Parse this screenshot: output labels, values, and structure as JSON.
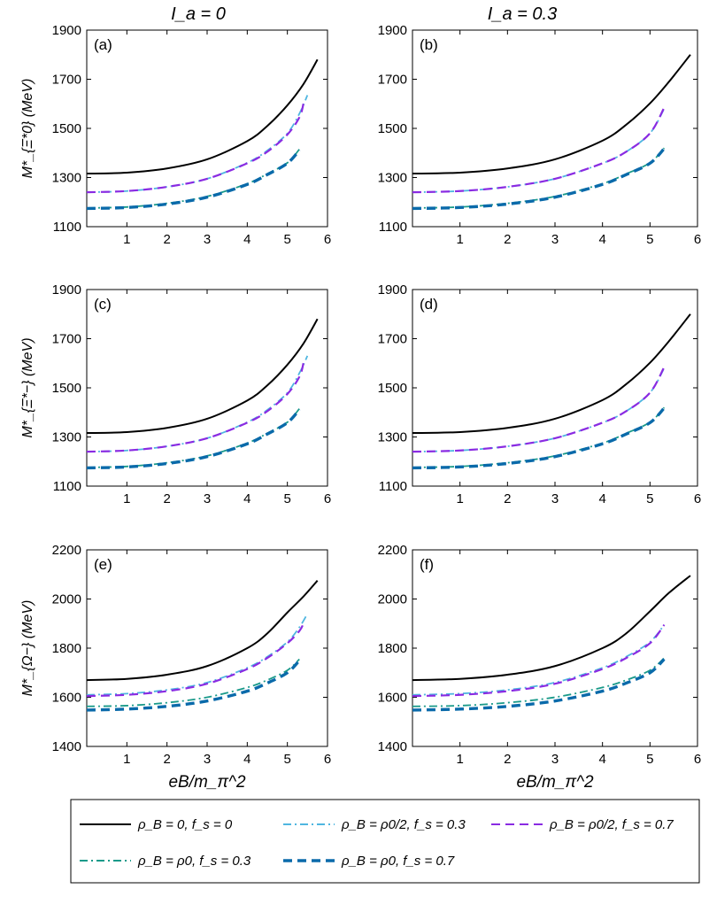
{
  "column_titles": [
    "I_a = 0",
    "I_a = 0.3"
  ],
  "row_ylabels": [
    "M*_{Ξ*0} (MeV)",
    "M*_{Ξ*−} (MeV)",
    "M*_{Ω−} (MeV)"
  ],
  "xlabel": "eB/m_π^2",
  "legend": [
    {
      "label": "ρ_B = 0,  f_s = 0",
      "color": "#000000",
      "dash": "solid"
    },
    {
      "label": "ρ_B = ρ0/2,  f_s = 0.3",
      "color": "#4fb6e0",
      "dash": "dashdot"
    },
    {
      "label": "ρ_B = ρ0/2,  f_s = 0.7",
      "color": "#8a2be2",
      "dash": "dashed"
    },
    {
      "label": "ρ_B = ρ0,  f_s = 0.3",
      "color": "#1a9a8a",
      "dash": "dashdot"
    },
    {
      "label": "ρ_B = ρ0,  f_s = 0.7",
      "color": "#0a6aaa",
      "dash": "dashed"
    }
  ],
  "chart_data": [
    {
      "type": "line",
      "panel": "(a)",
      "title": "I_a = 0",
      "ylabel": "M*_{Ξ*0} (MeV)",
      "xlabel": "",
      "xlim": [
        0,
        6
      ],
      "ylim": [
        1100,
        1900
      ],
      "xticks": [
        1,
        2,
        3,
        4,
        5,
        6
      ],
      "yticks": [
        1100,
        1300,
        1500,
        1700,
        1900
      ],
      "series": [
        {
          "name": "ρ_B = 0,  f_s = 0",
          "x": [
            0,
            1,
            2,
            3,
            4,
            4.5,
            5,
            5.4,
            5.75
          ],
          "y": [
            1316,
            1320,
            1337,
            1374,
            1448,
            1510,
            1594,
            1680,
            1780
          ]
        },
        {
          "name": "ρ_B = ρ0/2,  f_s = 0.3",
          "x": [
            0,
            1,
            2,
            3,
            4,
            4.5,
            5,
            5.3,
            5.5
          ],
          "y": [
            1240,
            1245,
            1262,
            1295,
            1360,
            1410,
            1480,
            1560,
            1635
          ]
        },
        {
          "name": "ρ_B = ρ0/2,  f_s = 0.7",
          "x": [
            0,
            1,
            2,
            3,
            4,
            4.5,
            5,
            5.3,
            5.4
          ],
          "y": [
            1240,
            1245,
            1262,
            1295,
            1358,
            1405,
            1475,
            1545,
            1600
          ]
        },
        {
          "name": "ρ_B = ρ0,  f_s = 0.3",
          "x": [
            0,
            1,
            2,
            3,
            4,
            4.5,
            5,
            5.3
          ],
          "y": [
            1176,
            1180,
            1195,
            1223,
            1275,
            1315,
            1360,
            1415
          ]
        },
        {
          "name": "ρ_B = ρ0,  f_s = 0.7",
          "x": [
            0,
            1,
            2,
            3,
            4,
            4.5,
            5,
            5.3
          ],
          "y": [
            1174,
            1178,
            1192,
            1220,
            1272,
            1312,
            1358,
            1412
          ]
        }
      ]
    },
    {
      "type": "line",
      "panel": "(b)",
      "title": "I_a = 0.3",
      "ylabel": "",
      "xlabel": "",
      "xlim": [
        0,
        6
      ],
      "ylim": [
        1100,
        1900
      ],
      "xticks": [
        1,
        2,
        3,
        4,
        5,
        6
      ],
      "yticks": [
        1100,
        1300,
        1500,
        1700,
        1900
      ],
      "series": [
        {
          "name": "ρ_B = 0,  f_s = 0",
          "x": [
            0,
            1,
            2,
            3,
            4,
            4.5,
            5,
            5.4,
            5.85
          ],
          "y": [
            1316,
            1320,
            1337,
            1374,
            1450,
            1515,
            1602,
            1690,
            1800
          ]
        },
        {
          "name": "ρ_B = ρ0/2,  f_s = 0.3",
          "x": [
            0,
            1,
            2,
            3,
            4,
            4.5,
            5,
            5.3
          ],
          "y": [
            1240,
            1245,
            1262,
            1295,
            1358,
            1405,
            1480,
            1580
          ]
        },
        {
          "name": "ρ_B = ρ0/2,  f_s = 0.7",
          "x": [
            0,
            1,
            2,
            3,
            4,
            4.5,
            5,
            5.3
          ],
          "y": [
            1240,
            1245,
            1262,
            1295,
            1358,
            1405,
            1480,
            1585
          ]
        },
        {
          "name": "ρ_B = ρ0,  f_s = 0.3",
          "x": [
            0,
            1,
            2,
            3,
            4,
            4.5,
            5,
            5.3
          ],
          "y": [
            1176,
            1180,
            1195,
            1223,
            1275,
            1315,
            1360,
            1420
          ]
        },
        {
          "name": "ρ_B = ρ0,  f_s = 0.7",
          "x": [
            0,
            1,
            2,
            3,
            4,
            4.5,
            5,
            5.3
          ],
          "y": [
            1174,
            1178,
            1192,
            1220,
            1272,
            1312,
            1358,
            1418
          ]
        }
      ]
    },
    {
      "type": "line",
      "panel": "(c)",
      "title": "",
      "ylabel": "M*_{Ξ*−} (MeV)",
      "xlabel": "",
      "xlim": [
        0,
        6
      ],
      "ylim": [
        1100,
        1900
      ],
      "xticks": [
        1,
        2,
        3,
        4,
        5,
        6
      ],
      "yticks": [
        1100,
        1300,
        1500,
        1700,
        1900
      ],
      "series": [
        {
          "name": "ρ_B = 0,  f_s = 0",
          "x": [
            0,
            1,
            2,
            3,
            4,
            4.5,
            5,
            5.4,
            5.75
          ],
          "y": [
            1316,
            1320,
            1337,
            1374,
            1448,
            1510,
            1594,
            1680,
            1780
          ]
        },
        {
          "name": "ρ_B = ρ0/2,  f_s = 0.3",
          "x": [
            0,
            1,
            2,
            3,
            4,
            4.5,
            5,
            5.3,
            5.5
          ],
          "y": [
            1240,
            1245,
            1262,
            1295,
            1360,
            1410,
            1480,
            1560,
            1630
          ]
        },
        {
          "name": "ρ_B = ρ0/2,  f_s = 0.7",
          "x": [
            0,
            1,
            2,
            3,
            4,
            4.5,
            5,
            5.3,
            5.4
          ],
          "y": [
            1240,
            1245,
            1262,
            1295,
            1358,
            1405,
            1475,
            1545,
            1600
          ]
        },
        {
          "name": "ρ_B = ρ0,  f_s = 0.3",
          "x": [
            0,
            1,
            2,
            3,
            4,
            4.5,
            5,
            5.3
          ],
          "y": [
            1176,
            1180,
            1195,
            1223,
            1275,
            1315,
            1360,
            1415
          ]
        },
        {
          "name": "ρ_B = ρ0,  f_s = 0.7",
          "x": [
            0,
            1,
            2,
            3,
            4,
            4.5,
            5,
            5.3
          ],
          "y": [
            1174,
            1178,
            1192,
            1220,
            1272,
            1312,
            1358,
            1412
          ]
        }
      ]
    },
    {
      "type": "line",
      "panel": "(d)",
      "title": "",
      "ylabel": "",
      "xlabel": "",
      "xlim": [
        0,
        6
      ],
      "ylim": [
        1100,
        1900
      ],
      "xticks": [
        1,
        2,
        3,
        4,
        5,
        6
      ],
      "yticks": [
        1100,
        1300,
        1500,
        1700,
        1900
      ],
      "series": [
        {
          "name": "ρ_B = 0,  f_s = 0",
          "x": [
            0,
            1,
            2,
            3,
            4,
            4.5,
            5,
            5.4,
            5.85
          ],
          "y": [
            1316,
            1320,
            1337,
            1374,
            1450,
            1515,
            1602,
            1690,
            1800
          ]
        },
        {
          "name": "ρ_B = ρ0/2,  f_s = 0.3",
          "x": [
            0,
            1,
            2,
            3,
            4,
            4.5,
            5,
            5.3
          ],
          "y": [
            1240,
            1245,
            1262,
            1295,
            1358,
            1405,
            1480,
            1580
          ]
        },
        {
          "name": "ρ_B = ρ0/2,  f_s = 0.7",
          "x": [
            0,
            1,
            2,
            3,
            4,
            4.5,
            5,
            5.3
          ],
          "y": [
            1240,
            1245,
            1262,
            1295,
            1358,
            1405,
            1480,
            1585
          ]
        },
        {
          "name": "ρ_B = ρ0,  f_s = 0.3",
          "x": [
            0,
            1,
            2,
            3,
            4,
            4.5,
            5,
            5.3
          ],
          "y": [
            1176,
            1180,
            1195,
            1223,
            1275,
            1315,
            1360,
            1420
          ]
        },
        {
          "name": "ρ_B = ρ0,  f_s = 0.7",
          "x": [
            0,
            1,
            2,
            3,
            4,
            4.5,
            5,
            5.3
          ],
          "y": [
            1174,
            1178,
            1192,
            1220,
            1272,
            1312,
            1358,
            1418
          ]
        }
      ]
    },
    {
      "type": "line",
      "panel": "(e)",
      "title": "",
      "ylabel": "M*_{Ω−} (MeV)",
      "xlabel": "eB/m_π^2",
      "xlim": [
        0,
        6
      ],
      "ylim": [
        1400,
        2200
      ],
      "xticks": [
        1,
        2,
        3,
        4,
        5,
        6
      ],
      "yticks": [
        1400,
        1600,
        1800,
        2000,
        2200
      ],
      "series": [
        {
          "name": "ρ_B = 0,  f_s = 0",
          "x": [
            0,
            1,
            2,
            3,
            4,
            4.5,
            5,
            5.4,
            5.75
          ],
          "y": [
            1670,
            1675,
            1692,
            1727,
            1800,
            1860,
            1945,
            2010,
            2075
          ]
        },
        {
          "name": "ρ_B = ρ0/2,  f_s = 0.3",
          "x": [
            0,
            1,
            2,
            3,
            4,
            4.5,
            5,
            5.3,
            5.5
          ],
          "y": [
            1610,
            1615,
            1630,
            1660,
            1720,
            1765,
            1825,
            1885,
            1940
          ]
        },
        {
          "name": "ρ_B = ρ0/2,  f_s = 0.7",
          "x": [
            0,
            1,
            2,
            3,
            4,
            4.5,
            5,
            5.3,
            5.4
          ],
          "y": [
            1605,
            1610,
            1625,
            1655,
            1715,
            1760,
            1820,
            1870,
            1900
          ]
        },
        {
          "name": "ρ_B = ρ0,  f_s = 0.3",
          "x": [
            0,
            1,
            2,
            3,
            4,
            4.5,
            5,
            5.3
          ],
          "y": [
            1563,
            1566,
            1578,
            1600,
            1640,
            1670,
            1710,
            1755
          ]
        },
        {
          "name": "ρ_B = ρ0,  f_s = 0.7",
          "x": [
            0,
            1,
            2,
            3,
            4,
            4.5,
            5,
            5.3
          ],
          "y": [
            1548,
            1552,
            1563,
            1585,
            1625,
            1658,
            1700,
            1750
          ]
        }
      ]
    },
    {
      "type": "line",
      "panel": "(f)",
      "title": "",
      "ylabel": "",
      "xlabel": "eB/m_π^2",
      "xlim": [
        0,
        6
      ],
      "ylim": [
        1400,
        2200
      ],
      "xticks": [
        1,
        2,
        3,
        4,
        5,
        6
      ],
      "yticks": [
        1400,
        1600,
        1800,
        2000,
        2200
      ],
      "series": [
        {
          "name": "ρ_B = 0,  f_s = 0",
          "x": [
            0,
            1,
            2,
            3,
            4,
            4.5,
            5,
            5.4,
            5.85
          ],
          "y": [
            1670,
            1675,
            1692,
            1727,
            1800,
            1860,
            1950,
            2025,
            2095
          ]
        },
        {
          "name": "ρ_B = ρ0/2,  f_s = 0.3",
          "x": [
            0,
            1,
            2,
            3,
            4,
            4.5,
            5,
            5.3
          ],
          "y": [
            1610,
            1615,
            1630,
            1660,
            1720,
            1765,
            1825,
            1895
          ]
        },
        {
          "name": "ρ_B = ρ0/2,  f_s = 0.7",
          "x": [
            0,
            1,
            2,
            3,
            4,
            4.5,
            5,
            5.3
          ],
          "y": [
            1605,
            1610,
            1625,
            1655,
            1715,
            1760,
            1820,
            1895
          ]
        },
        {
          "name": "ρ_B = ρ0,  f_s = 0.3",
          "x": [
            0,
            1,
            2,
            3,
            4,
            4.5,
            5,
            5.3
          ],
          "y": [
            1563,
            1566,
            1578,
            1600,
            1640,
            1670,
            1710,
            1760
          ]
        },
        {
          "name": "ρ_B = ρ0,  f_s = 0.7",
          "x": [
            0,
            1,
            2,
            3,
            4,
            4.5,
            5,
            5.3
          ],
          "y": [
            1548,
            1552,
            1563,
            1585,
            1625,
            1658,
            1700,
            1755
          ]
        }
      ]
    }
  ]
}
